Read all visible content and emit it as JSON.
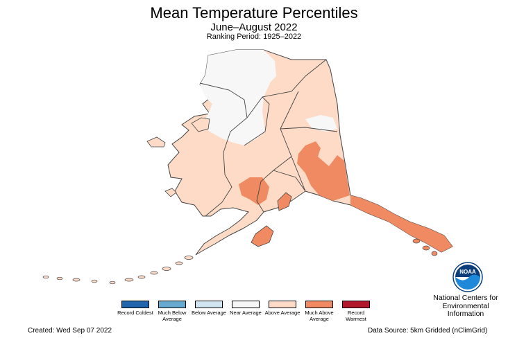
{
  "header": {
    "title": "Mean Temperature Percentiles",
    "subtitle": "June–August 2022",
    "period": "Ranking Period: 1925–2022"
  },
  "legend": [
    {
      "label": "Record Coldest",
      "color": "#2166ac"
    },
    {
      "label": "Much Below Average",
      "color": "#67a9cf"
    },
    {
      "label": "Below Average",
      "color": "#d1e5f0"
    },
    {
      "label": "Near Average",
      "color": "#f7f7f7"
    },
    {
      "label": "Above Average",
      "color": "#fddbc7"
    },
    {
      "label": "Much Above Average",
      "color": "#ef8a62"
    },
    {
      "label": "Record Warmest",
      "color": "#b2182b"
    }
  ],
  "footer": {
    "created": "Created: Wed Sep 07 2022",
    "source": "Data Source: 5km Gridded (nClimGrid)"
  },
  "org": {
    "logo_text": "NOAA",
    "name": "National Centers for Environmental Information"
  },
  "map": {
    "region": "Alaska",
    "colors": {
      "near": "#f7f7f7",
      "above": "#fddbc7",
      "much_above": "#ef8a62",
      "border": "#444444"
    }
  }
}
